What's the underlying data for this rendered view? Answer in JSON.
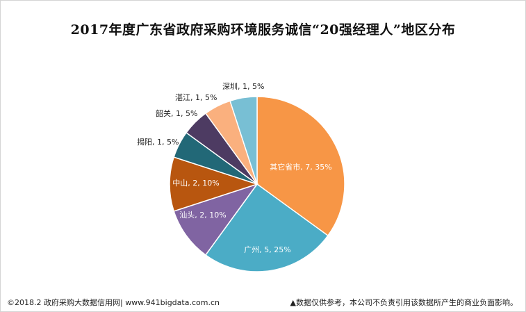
{
  "title": "2017年度广东省政府采购环境服务诚信“20强经理人”地区分布",
  "chart_data": {
    "type": "pie",
    "title": "2017年度广东省政府采购环境服务诚信“20强经理人”地区分布",
    "slices": [
      {
        "name": "其它省市",
        "value": 7,
        "percent": "35%",
        "label": "其它省市, 7, 35%",
        "color": "#F79646"
      },
      {
        "name": "广州",
        "value": 5,
        "percent": "25%",
        "label": "广州, 5, 25%",
        "color": "#4BACC6"
      },
      {
        "name": "汕头",
        "value": 2,
        "percent": "10%",
        "label": "汕头, 2, 10%",
        "color": "#8064A2"
      },
      {
        "name": "中山",
        "value": 2,
        "percent": "10%",
        "label": "中山, 2, 10%",
        "color": "#B8560F"
      },
      {
        "name": "揭阳",
        "value": 1,
        "percent": "5%",
        "label": "揭阳, 1, 5%",
        "color": "#226877"
      },
      {
        "name": "韶关",
        "value": 1,
        "percent": "5%",
        "label": "韶关, 1, 5%",
        "color": "#4D3B62"
      },
      {
        "name": "湛江",
        "value": 1,
        "percent": "5%",
        "label": "湛江, 1, 5%",
        "color": "#FAB07E"
      },
      {
        "name": "深圳",
        "value": 1,
        "percent": "5%",
        "label": "深圳, 1, 5%",
        "color": "#78BFD4"
      }
    ]
  },
  "footer": {
    "source": "©2018.2 政府采购大数据信用网| www.941bigdata.com.cn",
    "disclaimer": "▲数据仅供参考，本公司不负责引用该数据所产生的商业负面影响。"
  }
}
